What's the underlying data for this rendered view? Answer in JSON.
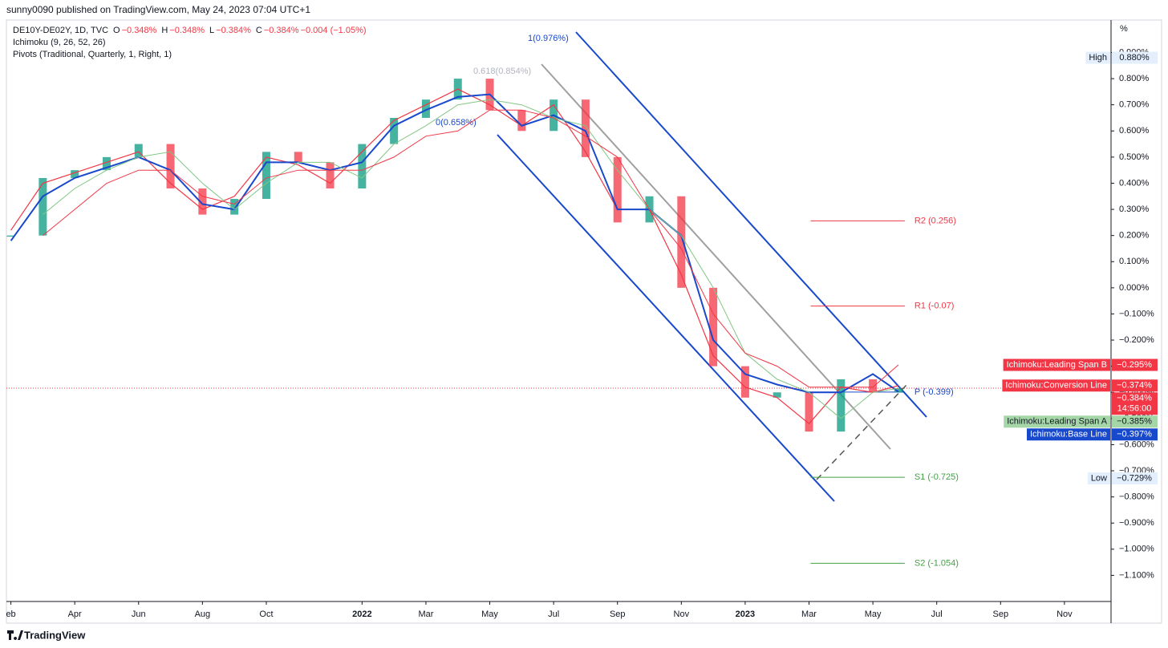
{
  "header": {
    "published": "sunny0090 published on TradingView.com, May 24, 2023 07:04 UTC+1",
    "symbol": "DE10Y-DE02Y, 1D, TVC",
    "ohlc": [
      {
        "key": "O",
        "value": "−0.348%"
      },
      {
        "key": "H",
        "value": "−0.348%"
      },
      {
        "key": "L",
        "value": "−0.384%"
      },
      {
        "key": "C",
        "value": "−0.384%"
      },
      {
        "key": "",
        "value": "−0.004 (−1.05%)"
      }
    ],
    "indicators": [
      "Ichimoku (9, 26, 52, 26)",
      "Pivots (Traditional, Quarterly, 1, Right, 1)"
    ]
  },
  "footer": "TradingView",
  "chart_data": {
    "type": "candlestick-line",
    "ylabel": "%",
    "x": [
      1,
      2,
      3,
      4,
      5,
      6,
      7,
      8,
      9,
      10,
      11,
      12,
      13,
      14,
      15,
      16,
      17,
      18,
      19,
      20,
      21,
      22,
      23,
      24,
      25,
      26,
      27,
      28,
      28.8
    ],
    "series": [
      {
        "name": "DE10Y-DE02Y",
        "kind": "candle",
        "color": "#089981",
        "down_color": "#f23645",
        "values": [
          0.2,
          0.42,
          0.45,
          0.5,
          0.55,
          0.38,
          0.28,
          0.34,
          0.52,
          0.48,
          0.38,
          0.55,
          0.65,
          0.72,
          0.8,
          0.68,
          0.6,
          0.72,
          0.5,
          0.25,
          0.35,
          0.0,
          -0.3,
          -0.42,
          -0.4,
          -0.55,
          -0.35,
          -0.4,
          -0.384
        ]
      },
      {
        "name": "Ichimoku:Conversion Line",
        "kind": "line",
        "color": "#f23645",
        "width": 1.2,
        "values": [
          0.22,
          0.4,
          0.44,
          0.48,
          0.52,
          0.4,
          0.3,
          0.35,
          0.5,
          0.47,
          0.4,
          0.52,
          0.64,
          0.7,
          0.76,
          0.7,
          0.62,
          0.7,
          0.52,
          0.3,
          0.3,
          0.05,
          -0.26,
          -0.38,
          -0.42,
          -0.52,
          -0.38,
          -0.4,
          -0.374
        ]
      },
      {
        "name": "Ichimoku:Base Line",
        "kind": "line",
        "color": "#1848cc",
        "width": 2,
        "values": [
          0.18,
          0.35,
          0.42,
          0.46,
          0.5,
          0.45,
          0.32,
          0.3,
          0.48,
          0.48,
          0.45,
          0.48,
          0.62,
          0.68,
          0.73,
          0.74,
          0.62,
          0.66,
          0.6,
          0.3,
          0.3,
          0.2,
          -0.2,
          -0.33,
          -0.37,
          -0.4,
          -0.4,
          -0.33,
          -0.397
        ]
      },
      {
        "name": "Ichimoku:Leading Span A",
        "kind": "line",
        "color": "#81c784",
        "width": 1,
        "values": [
          null,
          0.28,
          0.38,
          0.45,
          0.5,
          0.52,
          0.4,
          0.3,
          0.4,
          0.48,
          0.48,
          0.42,
          0.55,
          0.62,
          0.7,
          0.72,
          0.7,
          0.65,
          0.62,
          0.45,
          0.3,
          0.2,
          0.0,
          -0.25,
          -0.35,
          -0.4,
          -0.5,
          -0.4,
          -0.385
        ]
      },
      {
        "name": "Ichimoku:Leading Span B",
        "kind": "line",
        "color": "#f23645",
        "width": 1,
        "values": [
          null,
          0.2,
          0.3,
          0.4,
          0.45,
          0.45,
          0.35,
          0.32,
          0.42,
          0.45,
          0.45,
          0.45,
          0.5,
          0.58,
          0.6,
          0.68,
          0.68,
          0.65,
          0.58,
          0.5,
          0.3,
          0.15,
          -0.1,
          -0.25,
          -0.3,
          -0.38,
          -0.38,
          -0.38,
          -0.295
        ]
      }
    ],
    "pivots_x": [
      26.05,
      29.0
    ],
    "pivots": [
      {
        "value": 0.256,
        "label": "R2 (0.256)",
        "color": "#f23645"
      },
      {
        "value": -0.07,
        "label": "R1 (-0.07)",
        "color": "#f23645"
      },
      {
        "value": -0.399,
        "label": "P (-0.399)",
        "color": "#1848cc"
      },
      {
        "value": -0.725,
        "label": "S1 (-0.725)",
        "color": "#43a047"
      },
      {
        "value": -1.054,
        "label": "S2 (-1.054)",
        "color": "#43a047"
      }
    ],
    "annotations": [
      "1(0.976%)",
      "0.618(0.854%)",
      "0(0.658%)"
    ],
    "price_labels": [
      {
        "name": "High",
        "value": 0.88,
        "label": "0.880%",
        "color": "#e3effd",
        "text_color": "#131722"
      },
      {
        "name": "Ichimoku:Leading Span B",
        "value": -0.295,
        "label": "−0.295%",
        "color": "#f23645",
        "text_color": "#ffffff"
      },
      {
        "name": "Ichimoku:Conversion Line",
        "value": -0.374,
        "label": "−0.374%",
        "color": "#f23645",
        "text_color": "#ffffff"
      },
      {
        "value": -0.384,
        "label": "−0.384%",
        "time": "14:56:00",
        "color": "#f23645",
        "text_color": "#ffffff"
      },
      {
        "name": "Ichimoku:Leading Span A",
        "value": -0.385,
        "label": "−0.385%",
        "color": "#a5d6a7",
        "text_color": "#131722"
      },
      {
        "name": "Ichimoku:Base Line",
        "value": -0.397,
        "label": "−0.397%",
        "color": "#1848cc",
        "text_color": "#ffffff"
      },
      {
        "name": "Low",
        "value": -0.729,
        "label": "−0.729%",
        "color": "#e3effd",
        "text_color": "#131722"
      }
    ],
    "xlim": [
      0.86,
      35.46
    ],
    "xticks": [
      {
        "value": 1,
        "label": "eb"
      },
      {
        "value": 3,
        "label": "Apr"
      },
      {
        "value": 5,
        "label": "Jun"
      },
      {
        "value": 7,
        "label": "Aug"
      },
      {
        "value": 9,
        "label": "Oct"
      },
      {
        "value": 12,
        "label": "2022"
      },
      {
        "value": 14,
        "label": "Mar"
      },
      {
        "value": 16,
        "label": "May"
      },
      {
        "value": 18,
        "label": "Jul"
      },
      {
        "value": 20,
        "label": "Sep"
      },
      {
        "value": 22,
        "label": "Nov"
      },
      {
        "value": 24,
        "label": "2023"
      },
      {
        "value": 26,
        "label": "Mar"
      },
      {
        "value": 28,
        "label": "May"
      },
      {
        "value": 30,
        "label": "Jul"
      },
      {
        "value": 32,
        "label": "Sep"
      },
      {
        "value": 34,
        "label": "Nov"
      }
    ],
    "ylim": [
      -1.2,
      1.015
    ],
    "yticks": [
      {
        "value": 0.9,
        "label": "0.900%"
      },
      {
        "value": 0.8,
        "label": "0.800%"
      },
      {
        "value": 0.7,
        "label": "0.700%"
      },
      {
        "value": 0.6,
        "label": "0.600%"
      },
      {
        "value": 0.5,
        "label": "0.500%"
      },
      {
        "value": 0.4,
        "label": "0.400%"
      },
      {
        "value": 0.3,
        "label": "0.300%"
      },
      {
        "value": 0.2,
        "label": "0.200%"
      },
      {
        "value": 0.1,
        "label": "0.100%"
      },
      {
        "value": 0,
        "label": "0.000%"
      },
      {
        "value": -0.1,
        "label": "−0.100%"
      },
      {
        "value": -0.2,
        "label": "−0.200%"
      },
      {
        "value": -0.3,
        "label": "−0.300%"
      },
      {
        "value": -0.4,
        "label": "−0.400%"
      },
      {
        "value": -0.5,
        "label": "−0.500%"
      },
      {
        "value": -0.6,
        "label": "−0.600%"
      },
      {
        "value": -0.7,
        "label": "−0.700%"
      },
      {
        "value": -0.8,
        "label": "−0.800%"
      },
      {
        "value": -0.9,
        "label": "−0.900%"
      },
      {
        "value": -1.0,
        "label": "−1.000%"
      },
      {
        "value": -1.1,
        "label": "−1.100%"
      }
    ]
  }
}
